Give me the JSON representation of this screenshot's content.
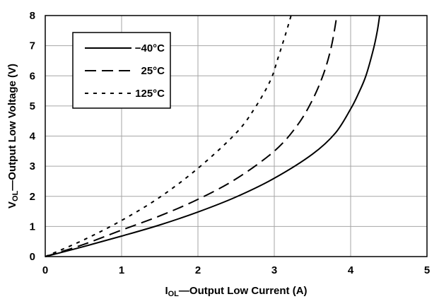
{
  "chart_data": {
    "type": "line",
    "title": "",
    "xlabel_main": "I",
    "xlabel_sub": "OL",
    "xlabel_rest": "—Output Low Current (A)",
    "ylabel_main": "V",
    "ylabel_sub": "OL",
    "ylabel_rest": "—Output Low Voltage (V)",
    "xlim": [
      0,
      5
    ],
    "ylim": [
      0,
      8
    ],
    "xticks": [
      "0",
      "1",
      "2",
      "3",
      "4",
      "5"
    ],
    "yticks": [
      "0",
      "1",
      "2",
      "3",
      "4",
      "5",
      "6",
      "7",
      "8"
    ],
    "grid": true,
    "legend_position": "top-left",
    "series": [
      {
        "name": "−40°C",
        "style": "solid",
        "x": [
          0,
          0.5,
          1.0,
          1.5,
          2.0,
          2.5,
          3.0,
          3.5,
          3.8,
          4.0,
          4.1,
          4.2,
          4.3,
          4.35,
          4.38
        ],
        "y": [
          0,
          0.33,
          0.68,
          1.05,
          1.48,
          1.98,
          2.6,
          3.4,
          4.1,
          4.9,
          5.4,
          6.0,
          6.9,
          7.5,
          8.0
        ]
      },
      {
        "name": "25°C",
        "style": "dashed",
        "x": [
          0,
          0.5,
          1.0,
          1.5,
          2.0,
          2.5,
          3.0,
          3.3,
          3.5,
          3.65,
          3.75,
          3.82
        ],
        "y": [
          0,
          0.4,
          0.88,
          1.35,
          1.9,
          2.58,
          3.5,
          4.35,
          5.2,
          6.1,
          7.0,
          8.0
        ]
      },
      {
        "name": "125°C",
        "style": "dotted",
        "x": [
          0,
          0.5,
          1.0,
          1.5,
          2.0,
          2.5,
          2.75,
          2.95,
          3.05,
          3.15,
          3.22
        ],
        "y": [
          0,
          0.55,
          1.2,
          1.97,
          2.93,
          4.1,
          4.95,
          5.85,
          6.6,
          7.4,
          8.0
        ]
      }
    ]
  }
}
